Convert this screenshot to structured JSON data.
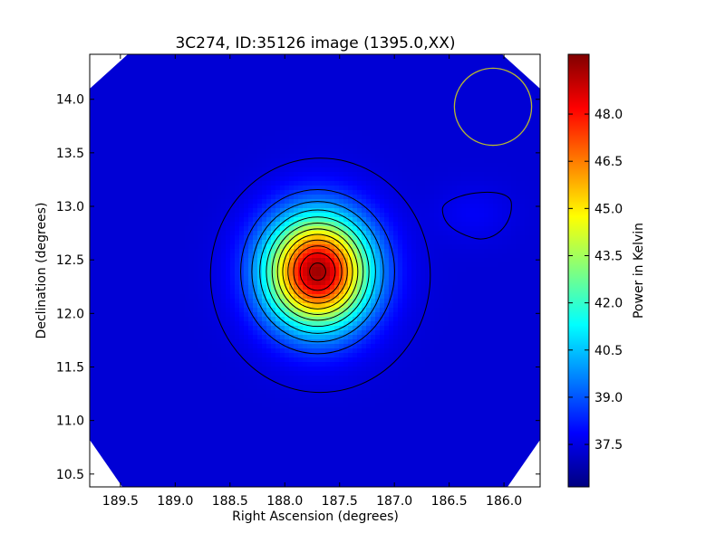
{
  "chart_data": {
    "type": "heatmap",
    "title": "3C274, ID:35126 image (1395.0,XX)",
    "xlabel": "Right Ascension (degrees)",
    "ylabel": "Declination (degrees)",
    "x_axis_inverted": true,
    "xlim": [
      189.78,
      185.67
    ],
    "ylim": [
      10.38,
      14.42
    ],
    "x_ticks": [
      189.5,
      189.0,
      188.5,
      188.0,
      187.5,
      187.0,
      186.5,
      186.0
    ],
    "x_tick_labels": [
      "189.5",
      "189.0",
      "188.5",
      "188.0",
      "187.5",
      "187.0",
      "186.5",
      "186.0"
    ],
    "y_ticks": [
      10.5,
      11.0,
      11.5,
      12.0,
      12.5,
      13.0,
      13.5,
      14.0
    ],
    "y_tick_labels": [
      "10.5",
      "11.0",
      "11.5",
      "12.0",
      "12.5",
      "13.0",
      "13.5",
      "14.0"
    ],
    "colormap": "jet",
    "colorbar": {
      "label": "Power in Kelvin",
      "range": [
        36.15,
        49.9
      ],
      "ticks": [
        37.5,
        39.0,
        40.5,
        42.0,
        43.5,
        45.0,
        46.5,
        48.0
      ],
      "tick_labels": [
        "37.5",
        "39.0",
        "40.5",
        "42.0",
        "43.5",
        "45.0",
        "46.5",
        "48.0"
      ]
    },
    "source": {
      "ra": 187.7,
      "dec": 12.39,
      "peak_value": 49.5,
      "background_value": 37.3,
      "sigma_ra_deg": 0.33,
      "sigma_dec_deg": 0.36
    },
    "secondary_contour": {
      "ra": 186.28,
      "dec": 12.93
    },
    "contour_levels": 12,
    "beam_circle": {
      "ra": 186.1,
      "dec": 13.93,
      "radius_deg": 0.36,
      "color": "#b8b830"
    },
    "blank_corners": true,
    "grid": false
  }
}
